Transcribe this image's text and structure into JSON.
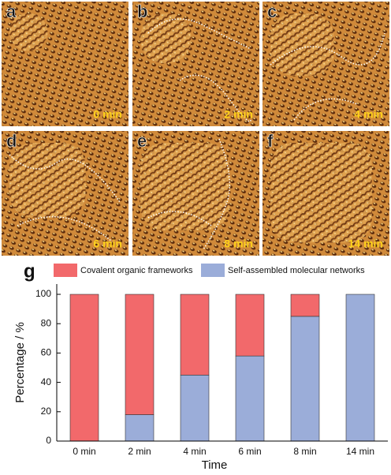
{
  "panels": [
    {
      "label": "a",
      "time": "0 min"
    },
    {
      "label": "b",
      "time": "2 min"
    },
    {
      "label": "c",
      "time": "4 min"
    },
    {
      "label": "d",
      "time": "6 min"
    },
    {
      "label": "e",
      "time": "8 min"
    },
    {
      "label": "f",
      "time": "14 min"
    }
  ],
  "chart_data": {
    "type": "stacked_bar",
    "panel_label": "g",
    "categories": [
      "0 min",
      "2 min",
      "4 min",
      "6 min",
      "8 min",
      "14 min"
    ],
    "series": [
      {
        "name": "Covalent organic frameworks",
        "color": "#f2696b",
        "values": [
          100,
          82,
          55,
          42,
          15,
          0
        ]
      },
      {
        "name": "Self-assembled molecular networks",
        "color": "#9badd9",
        "values": [
          0,
          18,
          45,
          58,
          85,
          100
        ]
      }
    ],
    "ylim": [
      0,
      107
    ],
    "yticks": [
      0,
      20,
      40,
      60,
      80,
      100
    ],
    "x_label": "Time",
    "y_label": "Percentage  /  %"
  }
}
